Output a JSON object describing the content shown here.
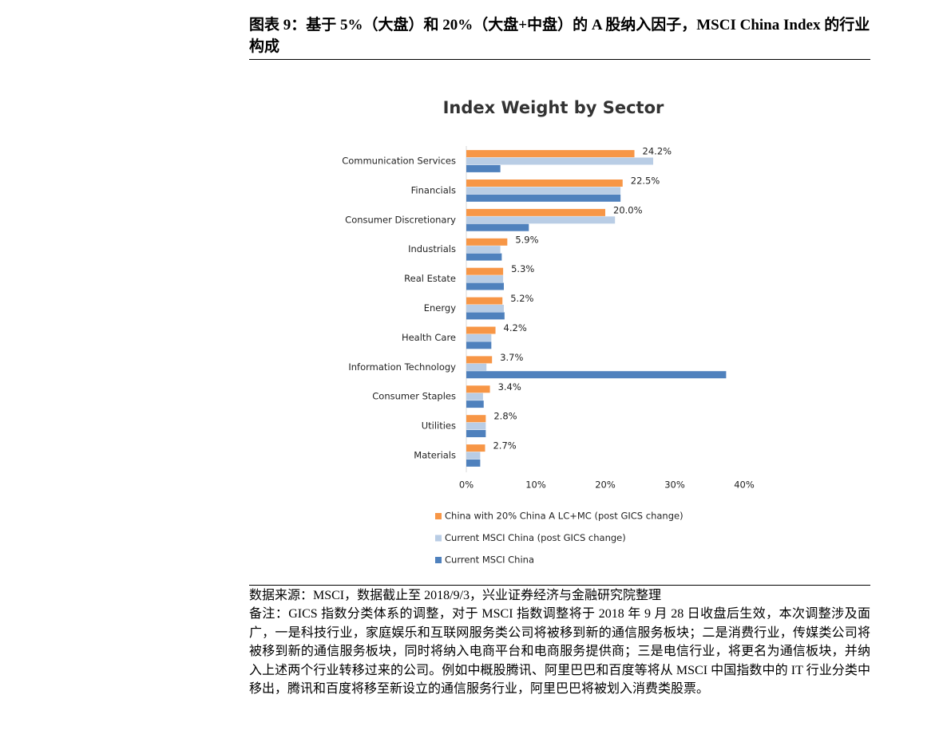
{
  "header": {
    "title": "图表 9：基于 5%（大盘）和 20%（大盘+中盘）的 A 股纳入因子，MSCI China Index 的行业构成"
  },
  "chart_data": {
    "type": "bar",
    "orientation": "horizontal",
    "title": "Index Weight by Sector",
    "categories": [
      "Communication Services",
      "Financials",
      "Consumer Discretionary",
      "Industrials",
      "Real Estate",
      "Energy",
      "Health Care",
      "Information Technology",
      "Consumer Staples",
      "Utilities",
      "Materials"
    ],
    "series": [
      {
        "name": "China with 20% China A LC+MC (post GICS change)",
        "color": "#f79646",
        "values": [
          24.2,
          22.5,
          20.0,
          5.9,
          5.3,
          5.2,
          4.2,
          3.7,
          3.4,
          2.8,
          2.7
        ],
        "value_labels": [
          "24.2%",
          "22.5%",
          "20.0%",
          "5.9%",
          "5.3%",
          "5.2%",
          "4.2%",
          "3.7%",
          "3.4%",
          "2.8%",
          "2.7%"
        ]
      },
      {
        "name": "Current MSCI China (post GICS change)",
        "color": "#b9cde5",
        "values": [
          26.9,
          22.2,
          21.4,
          4.9,
          5.3,
          5.4,
          3.6,
          2.9,
          2.4,
          2.8,
          2.0
        ]
      },
      {
        "name": "Current MSCI China",
        "color": "#4f81bd",
        "values": [
          4.9,
          22.2,
          9.0,
          5.1,
          5.4,
          5.5,
          3.6,
          37.4,
          2.5,
          2.8,
          2.0
        ]
      }
    ],
    "xlim": [
      0,
      40
    ],
    "xticks": [
      {
        "value": 0,
        "label": "0%"
      },
      {
        "value": 10,
        "label": "10%"
      },
      {
        "value": 20,
        "label": "20%"
      },
      {
        "value": 30,
        "label": "30%"
      },
      {
        "value": 40,
        "label": "40%"
      }
    ],
    "legend": "bottom-left"
  },
  "footer": {
    "source": "数据来源：MSCI，数据截止至 2018/9/3，兴业证券经济与金融研究院整理",
    "note": "备注：GICS 指数分类体系的调整，对于 MSCI 指数调整将于 2018 年 9 月 28 日收盘后生效，本次调整涉及面广，一是科技行业，家庭娱乐和互联网服务类公司将被移到新的通信服务板块；二是消费行业，传媒类公司将被移到新的通信服务板块，同时将纳入电商平台和电商服务提供商；三是电信行业，将更名为通信板块，并纳入上述两个行业转移过来的公司。例如中概股腾讯、阿里巴巴和百度等将从 MSCI 中国指数中的 IT 行业分类中移出，腾讯和百度将移至新设立的通信服务行业，阿里巴巴将被划入消费类股票。"
  }
}
